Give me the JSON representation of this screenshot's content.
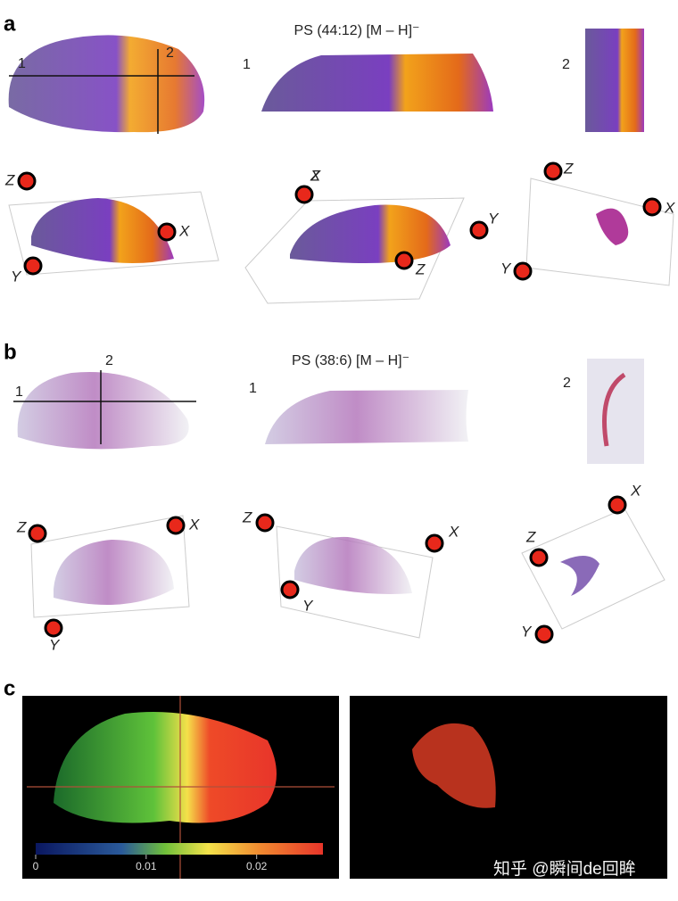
{
  "panels": [
    {
      "label": "a",
      "title": "PS (44:12) [M – H]⁻",
      "section_labels": [
        "1",
        "2"
      ],
      "view_labels": [
        [
          "Z",
          "X",
          "Y"
        ],
        [
          "X",
          "Y",
          "Z"
        ],
        [
          "Z",
          "X",
          "Y"
        ]
      ]
    },
    {
      "label": "b",
      "title": "PS (38:6) [M – H]⁻",
      "section_labels": [
        "1",
        "2"
      ],
      "view_labels": [
        [
          "Z",
          "X",
          "Y"
        ],
        [
          "Z",
          "X",
          "Y"
        ],
        [
          "X",
          "Z",
          "Y"
        ]
      ]
    },
    {
      "label": "c",
      "colorbar": {
        "lim": [
          0,
          0.026
        ],
        "ticks": [
          0,
          0.01,
          0.02
        ]
      }
    }
  ],
  "watermark": "知乎 @瞬间de回眸"
}
